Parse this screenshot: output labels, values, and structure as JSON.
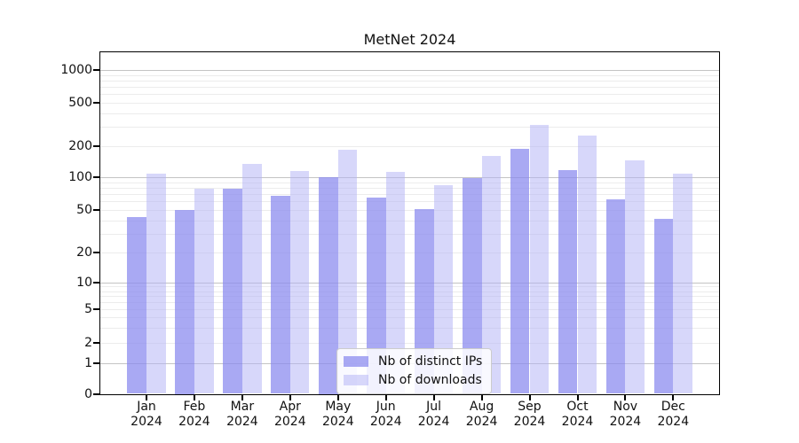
{
  "chart_data": {
    "type": "bar",
    "title": "MetNet 2024",
    "categories": [
      "Jan 2024",
      "Feb 2024",
      "Mar 2024",
      "Apr 2024",
      "May 2024",
      "Jun 2024",
      "Jul 2024",
      "Aug 2024",
      "Sep 2024",
      "Oct 2024",
      "Nov 2024",
      "Dec 2024"
    ],
    "month_labels": [
      "Jan",
      "Feb",
      "Mar",
      "Apr",
      "May",
      "Jun",
      "Jul",
      "Aug",
      "Sep",
      "Oct",
      "Nov",
      "Dec"
    ],
    "year_label": "2024",
    "series": [
      {
        "name": "Nb of distinct IPs",
        "color": "rgba(136,136,238,0.72)",
        "values": [
          43,
          50,
          79,
          67,
          100,
          65,
          51,
          99,
          187,
          118,
          63,
          41
        ]
      },
      {
        "name": "Nb of downloads",
        "color": "rgba(175,175,245,0.5)",
        "values": [
          108,
          78,
          135,
          114,
          185,
          112,
          85,
          160,
          315,
          252,
          145,
          109
        ]
      }
    ],
    "y_axis": {
      "scale": "symlog",
      "ticks": [
        0,
        1,
        2,
        5,
        10,
        20,
        50,
        100,
        200,
        500,
        1000
      ],
      "major_gridlines": [
        1,
        10,
        100,
        1000
      ],
      "range_top": 1000
    },
    "x_axis": {
      "label_lines": 2
    },
    "legend": {
      "position": "lower-center",
      "entries": [
        "Nb of distinct IPs",
        "Nb of downloads"
      ]
    },
    "grid": true,
    "colors": {
      "major_grid": "#c4c4c4",
      "minor_grid": "#ececec",
      "spine": "#000000",
      "text": "#111111"
    }
  }
}
